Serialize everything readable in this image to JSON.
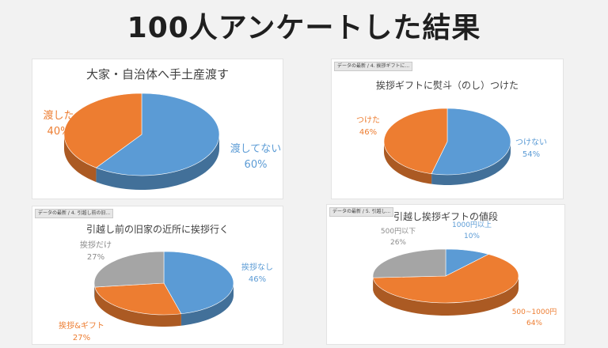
{
  "page_title": "100人アンケートした結果",
  "colors": {
    "blue": "#5b9bd5",
    "orange": "#ed7d31",
    "gray": "#a5a5a5"
  },
  "chart_data": [
    {
      "type": "pie",
      "tag": "",
      "title": "大家・自治体へ手土産渡す",
      "slices": [
        {
          "label": "渡してない",
          "value": 60,
          "pct_text": "60%",
          "color": "blue"
        },
        {
          "label": "渡した",
          "value": 40,
          "pct_text": "40%",
          "color": "orange"
        }
      ]
    },
    {
      "type": "pie",
      "tag": "データの最新 / 4. 挨拶ギフトに...",
      "title": "挨拶ギフトに熨斗（のし）つけた",
      "slices": [
        {
          "label": "つけない",
          "value": 54,
          "pct_text": "54%",
          "color": "blue"
        },
        {
          "label": "つけた",
          "value": 46,
          "pct_text": "46%",
          "color": "orange"
        }
      ]
    },
    {
      "type": "pie",
      "tag": "データの最新 / 4. 引越し前の旧...",
      "title": "引越し前の旧家の近所に挨拶行く",
      "slices": [
        {
          "label": "挨拶なし",
          "value": 46,
          "pct_text": "46%",
          "color": "blue"
        },
        {
          "label": "挨拶&ギフト",
          "value": 27,
          "pct_text": "27%",
          "color": "orange"
        },
        {
          "label": "挨拶だけ",
          "value": 27,
          "pct_text": "27%",
          "color": "gray"
        }
      ]
    },
    {
      "type": "pie",
      "tag": "データの最新 / 5. 引越し...",
      "title": "引越し挨拶ギフトの値段",
      "slices": [
        {
          "label": "1000円以上",
          "value": 10,
          "pct_text": "10%",
          "color": "blue"
        },
        {
          "label": "500~1000円",
          "value": 64,
          "pct_text": "64%",
          "color": "orange"
        },
        {
          "label": "500円以下",
          "value": 26,
          "pct_text": "26%",
          "color": "gray"
        }
      ]
    }
  ]
}
